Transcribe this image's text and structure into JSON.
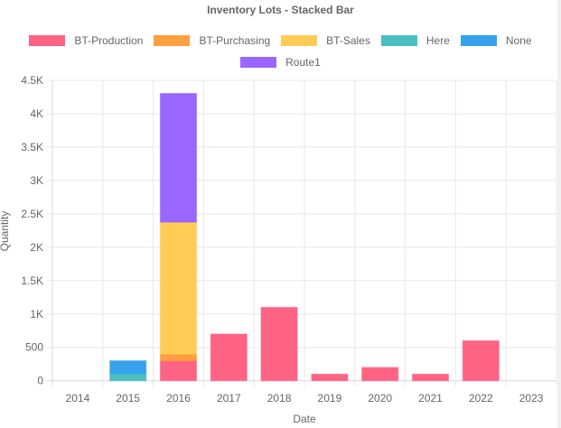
{
  "chart_data": {
    "type": "bar",
    "stacked": true,
    "title": "Inventory Lots - Stacked Bar",
    "xlabel": "Date",
    "ylabel": "Quantity",
    "categories": [
      "2014",
      "2015",
      "2016",
      "2017",
      "2018",
      "2019",
      "2020",
      "2021",
      "2022",
      "2023"
    ],
    "ylim": [
      0,
      4500
    ],
    "yticks": [
      0,
      500,
      1000,
      1500,
      2000,
      2500,
      3000,
      3500,
      4000,
      4500
    ],
    "ytick_labels": [
      "0",
      "500",
      "1K",
      "1.5K",
      "2K",
      "2.5K",
      "3K",
      "3.5K",
      "4K",
      "4.5K"
    ],
    "grid": true,
    "legend_position": "top",
    "series": [
      {
        "name": "BT-Production",
        "color": "#ff6384",
        "values": [
          0,
          0,
          300,
          700,
          1100,
          100,
          200,
          100,
          600,
          0
        ]
      },
      {
        "name": "BT-Purchasing",
        "color": "#ff9f40",
        "values": [
          0,
          0,
          100,
          0,
          0,
          0,
          0,
          0,
          0,
          0
        ]
      },
      {
        "name": "BT-Sales",
        "color": "#ffcd56",
        "values": [
          0,
          0,
          1975,
          0,
          0,
          0,
          0,
          0,
          0,
          0
        ]
      },
      {
        "name": "Here",
        "color": "#4bc0c0",
        "values": [
          0,
          100,
          0,
          0,
          0,
          0,
          0,
          0,
          0,
          0
        ]
      },
      {
        "name": "None",
        "color": "#36a2eb",
        "values": [
          0,
          200,
          0,
          0,
          0,
          0,
          0,
          0,
          0,
          0
        ]
      },
      {
        "name": "Route1",
        "color": "#9966ff",
        "values": [
          0,
          0,
          1930,
          0,
          0,
          0,
          0,
          0,
          0,
          0
        ]
      }
    ]
  }
}
